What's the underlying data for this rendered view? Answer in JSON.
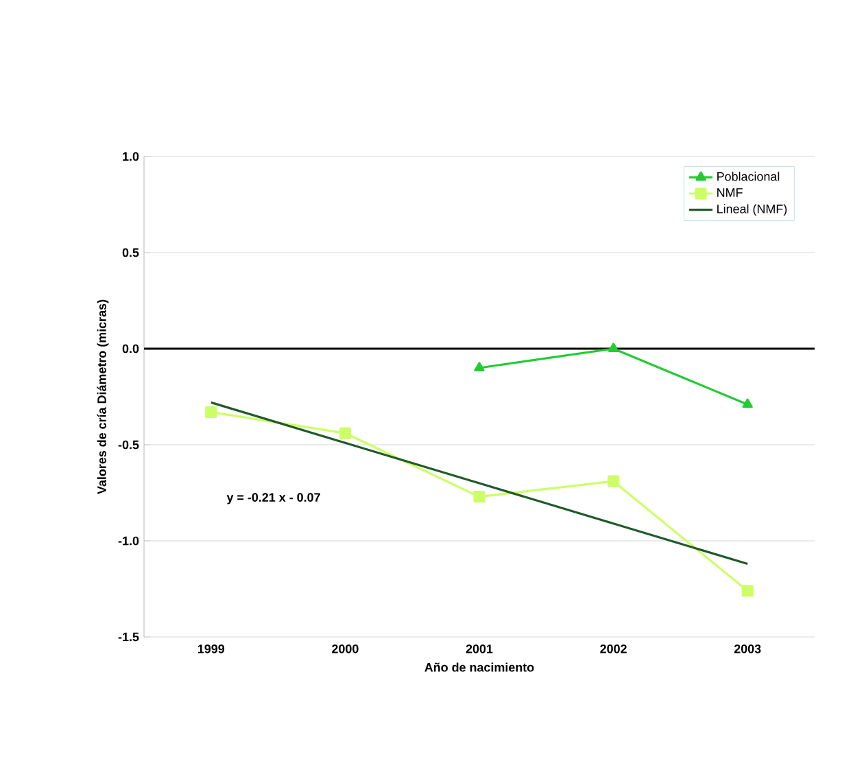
{
  "chart_data": {
    "type": "line",
    "xlabel": "Año de nacimiento",
    "ylabel": "Valores de cría Diámetro (micras)",
    "categories": [
      "1999",
      "2000",
      "2001",
      "2002",
      "2003"
    ],
    "series": [
      {
        "name": "Poblacional",
        "color": "#22cc33",
        "marker": "triangle",
        "values": [
          null,
          null,
          -0.1,
          0.0,
          -0.29
        ]
      },
      {
        "name": "NMF",
        "color": "#ccff66",
        "marker": "square",
        "values": [
          -0.33,
          -0.44,
          -0.77,
          -0.69,
          -1.26
        ]
      },
      {
        "name": "Lineal (NMF)",
        "color": "#1f5a2a",
        "marker": "none",
        "values": [
          -0.28,
          -0.49,
          -0.7,
          -0.91,
          -1.12
        ]
      }
    ],
    "ylim": [
      -1.5,
      1.0
    ],
    "yticks": [
      {
        "value": -1.5,
        "label": "-1.5"
      },
      {
        "value": -1.0,
        "label": "-1.0"
      },
      {
        "value": -0.5,
        "label": "-0.5"
      },
      {
        "value": 0.0,
        "label": "0.0"
      },
      {
        "value": 0.5,
        "label": "0.5"
      },
      {
        "value": 1.0,
        "label": "1.0"
      }
    ],
    "ref_lines": [
      {
        "axis": "y",
        "value": 0,
        "color": "#000000"
      }
    ],
    "annotations": [
      "y = -0.21 x - 0.07"
    ],
    "grid": "y",
    "legend": "top right"
  }
}
